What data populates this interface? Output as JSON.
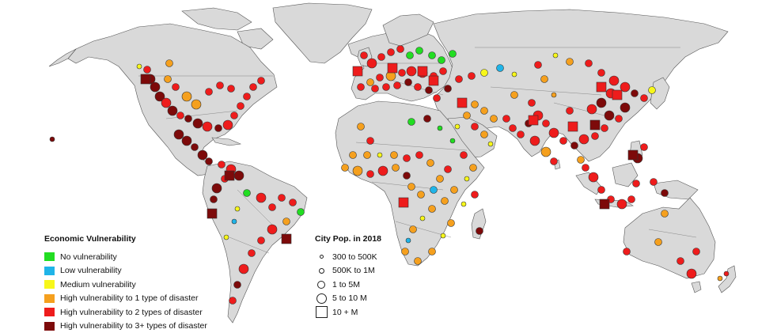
{
  "map": {
    "land_color": "#d9d9d9",
    "legends": {
      "vulnerability": {
        "title": "Economic Vulnerability",
        "items": [
          {
            "label": "No vulnerability",
            "color": "#22dd22",
            "key": "none"
          },
          {
            "label": "Low vulnerability",
            "color": "#1fb4e8",
            "key": "low"
          },
          {
            "label": "Medium vulnerability",
            "color": "#f7f71a",
            "key": "medium"
          },
          {
            "label": "High vulnerability to 1 type of disaster",
            "color": "#f5a01e",
            "key": "high1"
          },
          {
            "label": "High vulnerability to 2 types of disaster",
            "color": "#ee1c1c",
            "key": "high2"
          },
          {
            "label": "High vulnerability to 3+ types of disaster",
            "color": "#7d0a0a",
            "key": "high3"
          }
        ]
      },
      "population": {
        "title": "City Pop. in 2018",
        "items": [
          {
            "label": "300 to 500K",
            "symbol": "circle",
            "size": 1
          },
          {
            "label": "500K to 1M",
            "symbol": "circle",
            "size": 2
          },
          {
            "label": "1 to 5M",
            "symbol": "circle",
            "size": 3
          },
          {
            "label": "5 to 10 M",
            "symbol": "circle",
            "size": 4
          },
          {
            "label": "10 + M",
            "symbol": "square",
            "size": 5
          }
        ]
      }
    }
  }
}
